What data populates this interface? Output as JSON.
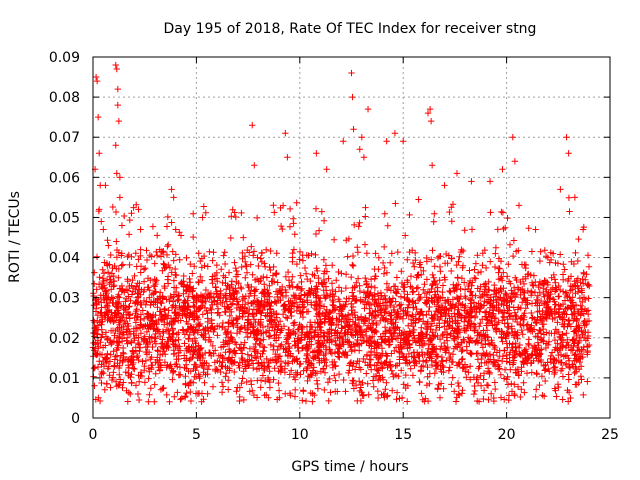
{
  "chart_data": {
    "type": "scatter",
    "title": "Day 195 of 2018, Rate Of TEC Index for receiver stng",
    "xlabel": "GPS time / hours",
    "ylabel": "ROTI / TECUs",
    "xlim": [
      0,
      25
    ],
    "ylim": [
      0,
      0.09
    ],
    "xticks": [
      "0",
      "5",
      "10",
      "15",
      "20",
      "25"
    ],
    "yticks": [
      "0",
      "0.01",
      "0.02",
      "0.03",
      "0.04",
      "0.05",
      "0.06",
      "0.07",
      "0.08",
      "0.09"
    ],
    "grid": true,
    "marker": "+",
    "color": "#ff0000",
    "data_extent_hours": [
      0,
      24
    ],
    "series": [
      {
        "x": [
          0.1,
          0.15,
          0.2,
          0.25,
          0.3,
          0.3,
          0.35,
          0.4,
          0.5,
          0.6,
          1.1,
          1.15,
          1.2,
          1.2,
          1.25,
          1.1,
          1.15,
          1.3,
          1.3,
          1.4,
          2.2,
          2.3,
          3.8,
          3.9,
          4.0,
          5.3,
          7.7,
          7.8,
          9.3,
          9.4,
          10.8,
          11.3,
          12.1,
          12.5,
          12.55,
          12.6,
          12.9,
          13.0,
          13.1,
          13.3,
          14.2,
          14.6,
          15.0,
          16.2,
          16.3,
          16.35,
          16.4,
          17.0,
          17.6,
          18.3,
          19.2,
          19.8,
          20.3,
          20.4,
          20.6,
          22.6,
          22.9,
          23.0,
          23.3,
          23.7
        ],
        "y": [
          0.062,
          0.085,
          0.084,
          0.075,
          0.066,
          0.052,
          0.058,
          0.049,
          0.047,
          0.058,
          0.088,
          0.087,
          0.082,
          0.078,
          0.074,
          0.068,
          0.061,
          0.06,
          0.055,
          0.048,
          0.052,
          0.047,
          0.057,
          0.055,
          0.047,
          0.05,
          0.073,
          0.063,
          0.071,
          0.065,
          0.066,
          0.062,
          0.069,
          0.086,
          0.08,
          0.072,
          0.067,
          0.07,
          0.065,
          0.077,
          0.069,
          0.071,
          0.069,
          0.076,
          0.077,
          0.074,
          0.063,
          0.058,
          0.061,
          0.059,
          0.059,
          0.062,
          0.07,
          0.064,
          0.053,
          0.057,
          0.07,
          0.066,
          0.055,
          0.047
        ]
      }
    ]
  }
}
